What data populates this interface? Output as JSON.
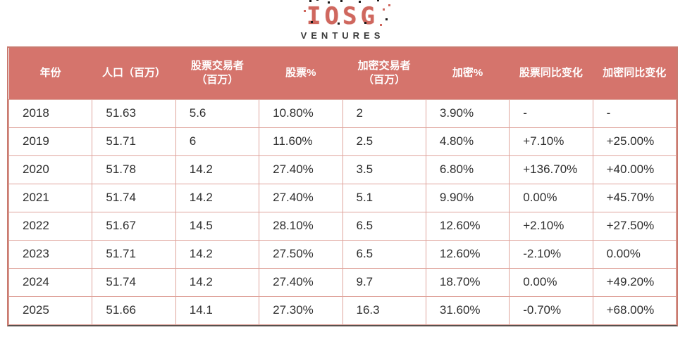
{
  "logo": {
    "brand": "IOSG",
    "sub": "VENTURES"
  },
  "colors": {
    "header_bg": "#d5746c",
    "header_text": "#ffffff",
    "grid_line": "#dfa49c",
    "outer_border": "#c97a6f",
    "bottom_border": "#57504c",
    "brand_color": "#cf675e",
    "body_text": "#2e2e2e"
  },
  "table": {
    "columns": [
      "年份",
      "人口（百万）",
      "股票交易者\n（百万）",
      "股票%",
      "加密交易者\n（百万）",
      "加密%",
      "股票同比变化",
      "加密同比变化"
    ],
    "rows": [
      [
        "2018",
        "51.63",
        "5.6",
        "10.80%",
        "2",
        "3.90%",
        "-",
        "-"
      ],
      [
        "2019",
        "51.71",
        "6",
        "11.60%",
        "2.5",
        "4.80%",
        "+7.10%",
        "+25.00%"
      ],
      [
        "2020",
        "51.78",
        "14.2",
        "27.40%",
        "3.5",
        "6.80%",
        "+136.70%",
        "+40.00%"
      ],
      [
        "2021",
        "51.74",
        "14.2",
        "27.40%",
        "5.1",
        "9.90%",
        "0.00%",
        "+45.70%"
      ],
      [
        "2022",
        "51.67",
        "14.5",
        "28.10%",
        "6.5",
        "12.60%",
        "+2.10%",
        "+27.50%"
      ],
      [
        "2023",
        "51.71",
        "14.2",
        "27.50%",
        "6.5",
        "12.60%",
        "-2.10%",
        "0.00%"
      ],
      [
        "2024",
        "51.74",
        "14.2",
        "27.40%",
        "9.7",
        "18.70%",
        "0.00%",
        "+49.20%"
      ],
      [
        "2025",
        "51.66",
        "14.1",
        "27.30%",
        "16.3",
        "31.60%",
        "-0.70%",
        "+68.00%"
      ]
    ]
  }
}
